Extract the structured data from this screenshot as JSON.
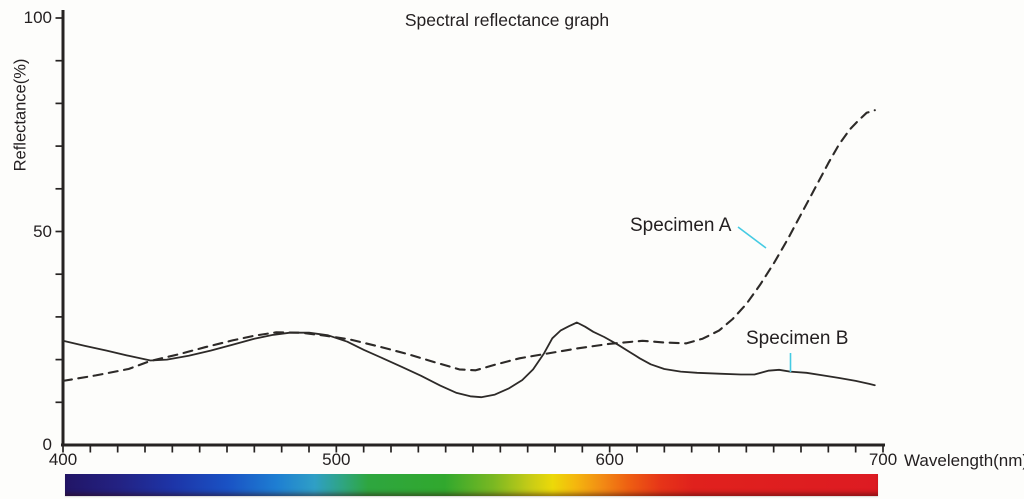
{
  "colors": {
    "background": "#fdfdfb",
    "axis": "#262322",
    "curve": "#2d2a28",
    "accent": "#45cbe3",
    "text": "#231f20"
  },
  "chart_data": {
    "type": "line",
    "title": "Spectral reflectance graph",
    "xlabel": "Wavelength(nm)",
    "ylabel": "Reflectance(%)",
    "xlim": [
      400,
      700
    ],
    "ylim": [
      0,
      100
    ],
    "grid": false,
    "legend_position": "none",
    "x_major_ticks": [
      400,
      500,
      600,
      700
    ],
    "y_major_ticks": [
      0,
      50,
      100
    ],
    "x_minor_step": 10,
    "y_minor_step": 10,
    "series": [
      {
        "name": "Specimen A",
        "style": "dashed",
        "color": "#2d2a28",
        "points": [
          [
            400,
            15.0
          ],
          [
            412,
            16.3
          ],
          [
            424,
            17.8
          ],
          [
            432,
            19.7
          ],
          [
            442,
            21.2
          ],
          [
            452,
            22.9
          ],
          [
            462,
            24.5
          ],
          [
            470,
            25.6
          ],
          [
            478,
            26.4
          ],
          [
            487,
            26.3
          ],
          [
            496,
            25.6
          ],
          [
            505,
            24.7
          ],
          [
            516,
            23.0
          ],
          [
            526,
            21.3
          ],
          [
            536,
            19.4
          ],
          [
            545,
            17.7
          ],
          [
            551,
            17.5
          ],
          [
            558,
            18.8
          ],
          [
            567,
            20.3
          ],
          [
            577,
            21.4
          ],
          [
            588,
            22.6
          ],
          [
            600,
            23.7
          ],
          [
            612,
            24.4
          ],
          [
            620,
            24.0
          ],
          [
            628,
            23.8
          ],
          [
            634,
            24.9
          ],
          [
            640,
            26.8
          ],
          [
            645,
            29.5
          ],
          [
            650,
            33.0
          ],
          [
            655,
            37.5
          ],
          [
            660,
            42.5
          ],
          [
            665,
            48.0
          ],
          [
            670,
            54.0
          ],
          [
            675,
            60.0
          ],
          [
            680,
            66.0
          ],
          [
            684,
            70.5
          ],
          [
            688,
            74.0
          ],
          [
            691,
            76.0
          ],
          [
            694,
            77.8
          ],
          [
            697,
            78.4
          ]
        ]
      },
      {
        "name": "Specimen B",
        "style": "solid",
        "color": "#2d2a28",
        "points": [
          [
            400,
            24.4
          ],
          [
            408,
            23.2
          ],
          [
            416,
            22.1
          ],
          [
            424,
            20.9
          ],
          [
            432,
            19.8
          ],
          [
            438,
            20.0
          ],
          [
            446,
            20.9
          ],
          [
            454,
            22.1
          ],
          [
            462,
            23.5
          ],
          [
            470,
            24.9
          ],
          [
            477,
            25.8
          ],
          [
            483,
            26.3
          ],
          [
            490,
            26.3
          ],
          [
            497,
            25.7
          ],
          [
            504,
            24.2
          ],
          [
            510,
            22.3
          ],
          [
            517,
            20.3
          ],
          [
            524,
            18.3
          ],
          [
            531,
            16.2
          ],
          [
            538,
            13.9
          ],
          [
            544,
            12.2
          ],
          [
            549,
            11.4
          ],
          [
            553,
            11.2
          ],
          [
            558,
            11.8
          ],
          [
            563,
            13.2
          ],
          [
            568,
            15.2
          ],
          [
            572,
            17.7
          ],
          [
            576,
            21.5
          ],
          [
            579,
            25.0
          ],
          [
            582,
            26.8
          ],
          [
            585,
            27.8
          ],
          [
            588,
            28.7
          ],
          [
            591,
            27.7
          ],
          [
            594,
            26.5
          ],
          [
            598,
            25.3
          ],
          [
            603,
            23.5
          ],
          [
            607,
            21.9
          ],
          [
            611,
            20.3
          ],
          [
            615,
            18.9
          ],
          [
            620,
            17.8
          ],
          [
            626,
            17.2
          ],
          [
            632,
            16.9
          ],
          [
            640,
            16.7
          ],
          [
            648,
            16.5
          ],
          [
            653,
            16.5
          ],
          [
            658,
            17.4
          ],
          [
            662,
            17.6
          ],
          [
            666,
            17.2
          ],
          [
            672,
            16.9
          ],
          [
            678,
            16.3
          ],
          [
            684,
            15.7
          ],
          [
            690,
            15.0
          ],
          [
            695,
            14.3
          ],
          [
            697,
            14.0
          ]
        ]
      }
    ],
    "annotations": [
      {
        "text": "Specimen A",
        "color": "#45cbe3",
        "points_to": "dashed curve"
      },
      {
        "text": "Specimen B",
        "color": "#45cbe3",
        "points_to": "solid curve"
      }
    ]
  },
  "spectrum_bar": {
    "description": "visible spectrum color strip under x-axis, 400-700 nm",
    "stops": [
      {
        "nm": 400,
        "color": "#221566"
      },
      {
        "nm": 420,
        "color": "#232283"
      },
      {
        "nm": 440,
        "color": "#1d35a8"
      },
      {
        "nm": 460,
        "color": "#1a52c4"
      },
      {
        "nm": 478,
        "color": "#1e7ed2"
      },
      {
        "nm": 492,
        "color": "#2f9fc6"
      },
      {
        "nm": 503,
        "color": "#2fa57e"
      },
      {
        "nm": 512,
        "color": "#2ea63f"
      },
      {
        "nm": 540,
        "color": "#31a82e"
      },
      {
        "nm": 558,
        "color": "#7ab822"
      },
      {
        "nm": 572,
        "color": "#c8cc16"
      },
      {
        "nm": 580,
        "color": "#ecd909"
      },
      {
        "nm": 588,
        "color": "#f4b80e"
      },
      {
        "nm": 598,
        "color": "#f28c14"
      },
      {
        "nm": 608,
        "color": "#ee5f12"
      },
      {
        "nm": 620,
        "color": "#e63418"
      },
      {
        "nm": 632,
        "color": "#e0211d"
      },
      {
        "nm": 700,
        "color": "#dd1b22"
      }
    ]
  }
}
